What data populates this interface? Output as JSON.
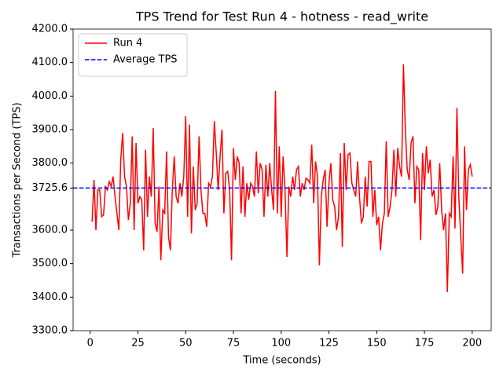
{
  "chart_data": {
    "type": "line",
    "title": "TPS Trend for Test Run 4 - hotness - read_write",
    "x_label": "Time (seconds)",
    "y_label": "Transactions per Second (TPS)",
    "x": [
      1,
      2,
      3,
      4,
      5,
      6,
      7,
      8,
      9,
      10,
      11,
      12,
      13,
      14,
      15,
      16,
      17,
      18,
      19,
      20,
      21,
      22,
      23,
      24,
      25,
      26,
      27,
      28,
      29,
      30,
      31,
      32,
      33,
      34,
      35,
      36,
      37,
      38,
      39,
      40,
      41,
      42,
      43,
      44,
      45,
      46,
      47,
      48,
      49,
      50,
      51,
      52,
      53,
      54,
      55,
      56,
      57,
      58,
      59,
      60,
      61,
      62,
      63,
      64,
      65,
      66,
      67,
      68,
      69,
      70,
      71,
      72,
      73,
      74,
      75,
      76,
      77,
      78,
      79,
      80,
      81,
      82,
      83,
      84,
      85,
      86,
      87,
      88,
      89,
      90,
      91,
      92,
      93,
      94,
      95,
      96,
      97,
      98,
      99,
      100,
      101,
      102,
      103,
      104,
      105,
      106,
      107,
      108,
      109,
      110,
      111,
      112,
      113,
      114,
      115,
      116,
      117,
      118,
      119,
      120,
      121,
      122,
      123,
      124,
      125,
      126,
      127,
      128,
      129,
      130,
      131,
      132,
      133,
      134,
      135,
      136,
      137,
      138,
      139,
      140,
      141,
      142,
      143,
      144,
      145,
      146,
      147,
      148,
      149,
      150,
      151,
      152,
      153,
      154,
      155,
      156,
      157,
      158,
      159,
      160,
      161,
      162,
      163,
      164,
      165,
      166,
      167,
      168,
      169,
      170,
      171,
      172,
      173,
      174,
      175,
      176,
      177,
      178,
      179,
      180,
      181,
      182,
      183,
      184,
      185,
      186,
      187,
      188,
      189,
      190,
      191,
      192,
      193,
      194,
      195,
      196,
      197,
      198,
      199,
      200
    ],
    "series": [
      {
        "name": "Run 4",
        "color": "#ff0000",
        "values": [
          3625,
          3750,
          3600,
          3720,
          3720,
          3640,
          3645,
          3730,
          3720,
          3745,
          3730,
          3760,
          3700,
          3650,
          3600,
          3810,
          3890,
          3760,
          3730,
          3630,
          3680,
          3880,
          3600,
          3860,
          3680,
          3700,
          3690,
          3540,
          3840,
          3640,
          3760,
          3700,
          3905,
          3620,
          3595,
          3730,
          3510,
          3660,
          3650,
          3835,
          3580,
          3540,
          3720,
          3820,
          3700,
          3680,
          3740,
          3700,
          3760,
          3940,
          3640,
          3915,
          3590,
          3790,
          3660,
          3680,
          3880,
          3720,
          3650,
          3650,
          3610,
          3740,
          3730,
          3760,
          3925,
          3830,
          3720,
          3820,
          3900,
          3650,
          3770,
          3775,
          3720,
          3510,
          3845,
          3750,
          3820,
          3800,
          3650,
          3790,
          3640,
          3740,
          3690,
          3740,
          3730,
          3700,
          3835,
          3710,
          3800,
          3780,
          3640,
          3795,
          3700,
          3800,
          3720,
          3660,
          4015,
          3650,
          3850,
          3640,
          3820,
          3720,
          3520,
          3730,
          3700,
          3760,
          3720,
          3780,
          3790,
          3700,
          3740,
          3720,
          3755,
          3750,
          3740,
          3855,
          3680,
          3805,
          3760,
          3495,
          3700,
          3750,
          3780,
          3610,
          3740,
          3800,
          3690,
          3670,
          3600,
          3640,
          3830,
          3550,
          3860,
          3720,
          3825,
          3830,
          3740,
          3720,
          3700,
          3805,
          3700,
          3620,
          3640,
          3760,
          3670,
          3805,
          3805,
          3640,
          3720,
          3615,
          3640,
          3540,
          3620,
          3650,
          3865,
          3640,
          3670,
          3720,
          3840,
          3700,
          3845,
          3790,
          3760,
          4095,
          3900,
          3780,
          3750,
          3860,
          3880,
          3680,
          3790,
          3780,
          3570,
          3830,
          3720,
          3850,
          3770,
          3810,
          3700,
          3720,
          3645,
          3670,
          3800,
          3660,
          3600,
          3650,
          3415,
          3650,
          3640,
          3820,
          3605,
          3965,
          3700,
          3580,
          3470,
          3850,
          3660,
          3780,
          3795,
          3760
        ]
      }
    ],
    "average": {
      "name": "Average TPS",
      "value": 3725.6,
      "color": "#0000ff"
    },
    "xlim": [
      -8.95,
      209.95
    ],
    "xticks": [
      0,
      25,
      50,
      75,
      100,
      125,
      150,
      175,
      200
    ],
    "ylim": [
      3300,
      4200
    ],
    "yticks": [
      {
        "value": 3300,
        "label": "3300.0"
      },
      {
        "value": 3400,
        "label": "3400.0"
      },
      {
        "value": 3500,
        "label": "3500.0"
      },
      {
        "value": 3600,
        "label": "3600.0"
      },
      3725.6,
      {
        "value": 3800,
        "label": "3800.0"
      },
      {
        "value": 3900,
        "label": "3900.0"
      },
      {
        "value": 4000,
        "label": "4000.0"
      },
      {
        "value": 4100,
        "label": "4100.0"
      },
      {
        "value": 4200,
        "label": "4200.0"
      }
    ],
    "legend": "upper left"
  }
}
